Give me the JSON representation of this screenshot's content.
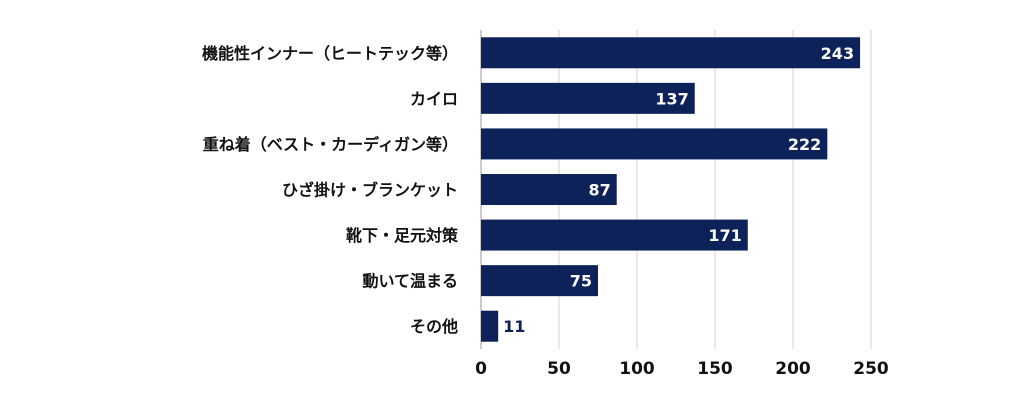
{
  "chart_data": {
    "type": "bar",
    "orientation": "horizontal",
    "title": "",
    "xlabel": "",
    "ylabel": "",
    "categories": [
      "機能性インナー（ヒートテック等）",
      "カイロ",
      "重ね着（ベスト・カーディガン等）",
      "ひざ掛け・ブランケット",
      "靴下・足元対策",
      "動いて温まる",
      "その他"
    ],
    "values": [
      243,
      137,
      222,
      87,
      171,
      75,
      11
    ],
    "xlim": [
      0,
      250
    ],
    "xticks": [
      0,
      50,
      100,
      150,
      200,
      250
    ],
    "grid": true,
    "legend": "none",
    "colors": {
      "bar": "#0c2259",
      "label_inside": "#ffffff",
      "label_outside": "#0c2259",
      "grid": "#d0d0d0",
      "text": "#111111"
    }
  }
}
